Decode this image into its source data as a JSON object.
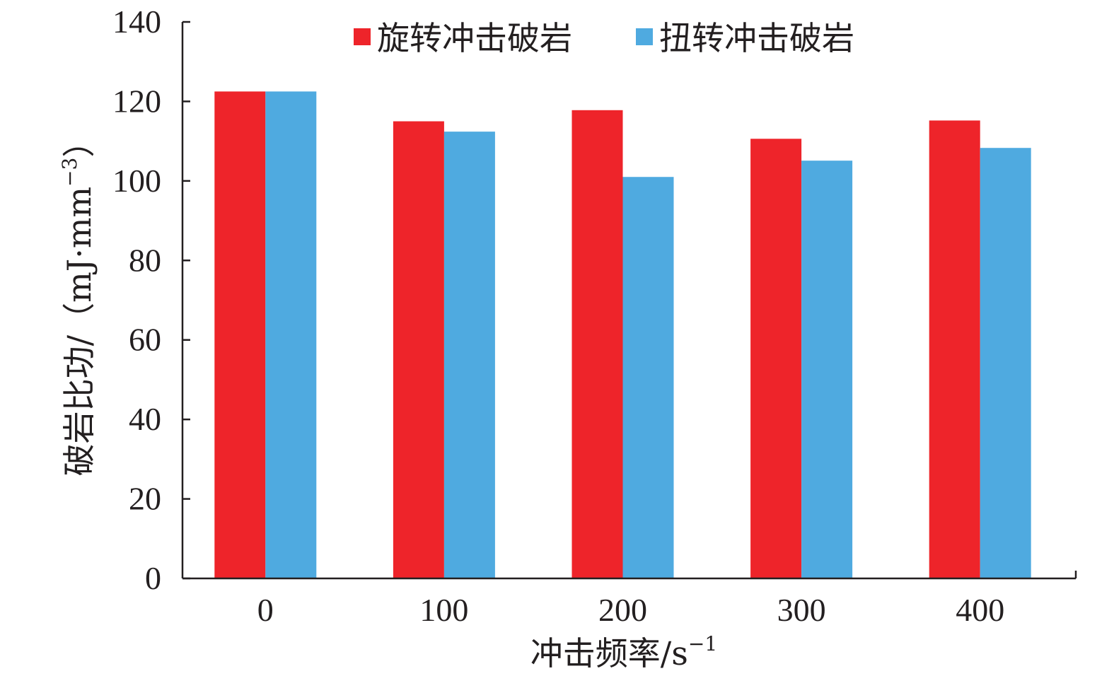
{
  "chart_data": {
    "type": "bar",
    "categories": [
      "0",
      "100",
      "200",
      "300",
      "400"
    ],
    "series": [
      {
        "name": "旋转冲击破岩",
        "color": "#ee242a",
        "values": [
          122.5,
          115,
          117.8,
          110.6,
          115.2
        ]
      },
      {
        "name": "扭转冲击破岩",
        "color": "#4faae0",
        "values": [
          122.5,
          112.4,
          101,
          105.1,
          108.3
        ]
      }
    ],
    "xlabel": "冲击频率/s",
    "xlabel_sup": "−1",
    "ylabel": "破岩比功/（mJ·mm",
    "ylabel_sup": "−3",
    "ylabel_close": "）",
    "ylim": [
      0,
      140
    ],
    "yticks": [
      "0",
      "20",
      "40",
      "60",
      "80",
      "100",
      "120",
      "140"
    ],
    "grid": false,
    "legend_position": "top"
  }
}
